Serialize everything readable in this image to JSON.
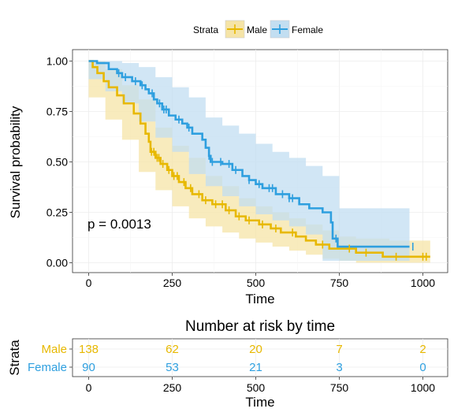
{
  "chart_data": [
    {
      "type": "line",
      "subtype": "kaplan-meier",
      "legend": {
        "title": "Strata",
        "position": "top",
        "items": [
          "Male",
          "Female"
        ]
      },
      "xlabel": "Time",
      "ylabel": "Survival probability",
      "xlim": [
        0,
        1022
      ],
      "ylim": [
        0,
        1
      ],
      "xticks": [
        0,
        250,
        500,
        750,
        1000
      ],
      "xtick_labels": [
        "0",
        "250",
        "500",
        "750",
        "1000"
      ],
      "yticks": [
        0,
        0.25,
        0.5,
        0.75,
        1
      ],
      "ytick_labels": [
        "0.00",
        "0.25",
        "0.50",
        "0.75",
        "1.00"
      ],
      "grid": true,
      "annotation": "p = 0.0013",
      "series": [
        {
          "name": "Male",
          "color": "#E7B800",
          "steps": [
            [
              0,
              1.0
            ],
            [
              12,
              0.97
            ],
            [
              26,
              0.94
            ],
            [
              45,
              0.9
            ],
            [
              60,
              0.87
            ],
            [
              85,
              0.83
            ],
            [
              105,
              0.79
            ],
            [
              135,
              0.74
            ],
            [
              155,
              0.69
            ],
            [
              170,
              0.64
            ],
            [
              180,
              0.6
            ],
            [
              185,
              0.55
            ],
            [
              200,
              0.52
            ],
            [
              215,
              0.49
            ],
            [
              235,
              0.46
            ],
            [
              250,
              0.43
            ],
            [
              270,
              0.4
            ],
            [
              290,
              0.37
            ],
            [
              310,
              0.34
            ],
            [
              340,
              0.31
            ],
            [
              370,
              0.29
            ],
            [
              410,
              0.26
            ],
            [
              440,
              0.23
            ],
            [
              470,
              0.21
            ],
            [
              510,
              0.19
            ],
            [
              545,
              0.17
            ],
            [
              575,
              0.15
            ],
            [
              620,
              0.13
            ],
            [
              650,
              0.11
            ],
            [
              680,
              0.09
            ],
            [
              720,
              0.07
            ],
            [
              800,
              0.05
            ],
            [
              880,
              0.03
            ],
            [
              1022,
              0.03
            ]
          ],
          "ci_upper": [
            [
              0,
              1.0
            ],
            [
              50,
              0.96
            ],
            [
              100,
              0.88
            ],
            [
              150,
              0.81
            ],
            [
              200,
              0.67
            ],
            [
              250,
              0.58
            ],
            [
              300,
              0.52
            ],
            [
              350,
              0.43
            ],
            [
              400,
              0.38
            ],
            [
              450,
              0.32
            ],
            [
              500,
              0.28
            ],
            [
              550,
              0.25
            ],
            [
              600,
              0.22
            ],
            [
              650,
              0.19
            ],
            [
              700,
              0.16
            ],
            [
              750,
              0.13
            ],
            [
              800,
              0.12
            ],
            [
              900,
              0.11
            ],
            [
              1022,
              0.11
            ]
          ],
          "ci_lower": [
            [
              0,
              1.0
            ],
            [
              50,
              0.82
            ],
            [
              100,
              0.71
            ],
            [
              150,
              0.61
            ],
            [
              200,
              0.45
            ],
            [
              250,
              0.36
            ],
            [
              300,
              0.28
            ],
            [
              350,
              0.22
            ],
            [
              400,
              0.18
            ],
            [
              450,
              0.15
            ],
            [
              500,
              0.12
            ],
            [
              550,
              0.1
            ],
            [
              600,
              0.08
            ],
            [
              650,
              0.06
            ],
            [
              700,
              0.04
            ],
            [
              750,
              0.02
            ],
            [
              800,
              0.01
            ],
            [
              900,
              0.0
            ],
            [
              1022,
              0.0
            ]
          ],
          "censor_times": [
            188,
            195,
            205,
            210,
            222,
            240,
            255,
            265,
            285,
            305,
            330,
            350,
            380,
            400,
            420,
            450,
            480,
            520,
            560,
            610,
            700,
            780,
            830,
            920,
            1000,
            1010
          ],
          "color_band": "#F5E4A7"
        },
        {
          "name": "Female",
          "color": "#2E9FDF",
          "steps": [
            [
              0,
              1.0
            ],
            [
              25,
              0.99
            ],
            [
              60,
              0.96
            ],
            [
              85,
              0.94
            ],
            [
              100,
              0.92
            ],
            [
              130,
              0.9
            ],
            [
              155,
              0.88
            ],
            [
              170,
              0.86
            ],
            [
              180,
              0.84
            ],
            [
              195,
              0.81
            ],
            [
              205,
              0.79
            ],
            [
              220,
              0.76
            ],
            [
              240,
              0.73
            ],
            [
              260,
              0.71
            ],
            [
              280,
              0.69
            ],
            [
              295,
              0.67
            ],
            [
              310,
              0.64
            ],
            [
              340,
              0.61
            ],
            [
              350,
              0.57
            ],
            [
              360,
              0.53
            ],
            [
              365,
              0.5
            ],
            [
              400,
              0.49
            ],
            [
              430,
              0.46
            ],
            [
              460,
              0.43
            ],
            [
              480,
              0.41
            ],
            [
              500,
              0.39
            ],
            [
              520,
              0.37
            ],
            [
              560,
              0.34
            ],
            [
              600,
              0.32
            ],
            [
              630,
              0.29
            ],
            [
              660,
              0.27
            ],
            [
              700,
              0.25
            ],
            [
              725,
              0.2
            ],
            [
              730,
              0.12
            ],
            [
              745,
              0.08
            ],
            [
              960,
              0.08
            ]
          ],
          "ci_upper": [
            [
              0,
              1.0
            ],
            [
              50,
              1.0
            ],
            [
              100,
              0.99
            ],
            [
              150,
              0.97
            ],
            [
              200,
              0.92
            ],
            [
              250,
              0.87
            ],
            [
              300,
              0.82
            ],
            [
              350,
              0.72
            ],
            [
              400,
              0.68
            ],
            [
              450,
              0.64
            ],
            [
              500,
              0.59
            ],
            [
              550,
              0.55
            ],
            [
              600,
              0.52
            ],
            [
              650,
              0.48
            ],
            [
              700,
              0.43
            ],
            [
              750,
              0.27
            ],
            [
              850,
              0.27
            ],
            [
              960,
              0.27
            ]
          ],
          "ci_lower": [
            [
              0,
              1.0
            ],
            [
              50,
              0.91
            ],
            [
              100,
              0.85
            ],
            [
              150,
              0.79
            ],
            [
              200,
              0.7
            ],
            [
              250,
              0.62
            ],
            [
              300,
              0.55
            ],
            [
              350,
              0.44
            ],
            [
              400,
              0.38
            ],
            [
              450,
              0.33
            ],
            [
              500,
              0.28
            ],
            [
              550,
              0.24
            ],
            [
              600,
              0.21
            ],
            [
              650,
              0.18
            ],
            [
              700,
              0.14
            ],
            [
              750,
              0.01
            ],
            [
              850,
              0.01
            ],
            [
              960,
              0.01
            ]
          ],
          "censor_times": [
            90,
            110,
            140,
            160,
            190,
            212,
            225,
            232,
            270,
            300,
            360,
            370,
            395,
            420,
            440,
            480,
            510,
            540,
            550,
            580,
            600,
            610,
            740,
            970
          ],
          "color_band": "#C2DEF1"
        }
      ]
    },
    {
      "type": "table",
      "title": "Number at risk by time",
      "xlabel": "Time",
      "ylabel": "Strata",
      "xticks": [
        0,
        250,
        500,
        750,
        1000
      ],
      "xtick_labels": [
        "0",
        "250",
        "500",
        "750",
        "1000"
      ],
      "rows": [
        {
          "name": "Male",
          "color": "#E7B800",
          "values": [
            138,
            62,
            20,
            7,
            2
          ]
        },
        {
          "name": "Female",
          "color": "#2E9FDF",
          "values": [
            90,
            53,
            21,
            3,
            0
          ]
        }
      ]
    }
  ]
}
